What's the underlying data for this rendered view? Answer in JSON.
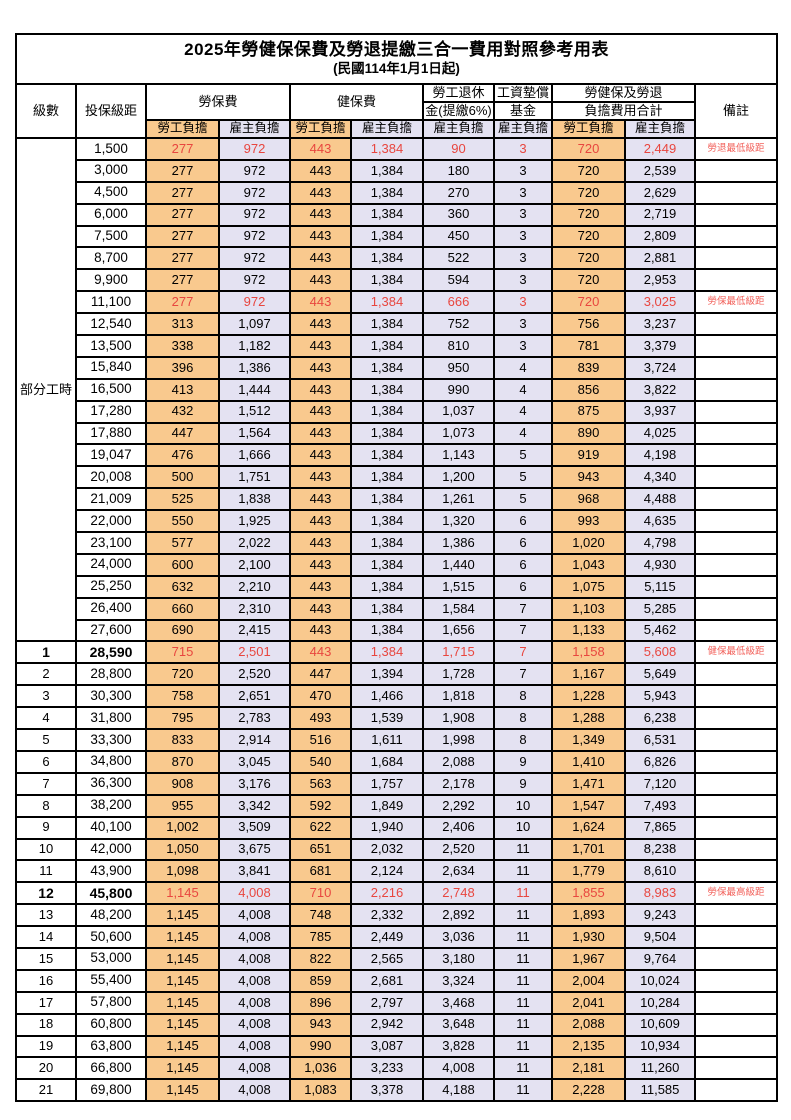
{
  "title": "2025年勞健保保費及勞退提繳三合一費用對照參考用表",
  "subtitle": "(民國114年1月1日起)",
  "header": {
    "level": "級數",
    "bracket": "投保級距",
    "labor_insurance": "勞保費",
    "health_insurance": "健保費",
    "pension_line1": "勞工退休",
    "pension_line2": "金(提繳6%)",
    "wage_fund_line1": "工資墊償",
    "wage_fund_line2": "基金",
    "total_line1": "勞健保及勞退",
    "total_line2": "負擔費用合計",
    "note": "備註",
    "employee": "勞工負擔",
    "employer": "雇主負擔"
  },
  "colors": {
    "employee_bg": "#f9c98e",
    "employer_bg": "#e4e2f2",
    "red_value": "#e8463f",
    "red_note": "#f2605a"
  },
  "part_time_label": "部分工時",
  "rows": [
    {
      "level": "",
      "bracket": "1,500",
      "values": [
        "277",
        "972",
        "443",
        "1,384",
        "90",
        "3",
        "720",
        "2,449"
      ],
      "note": "勞退最低級距",
      "red": true
    },
    {
      "level": "",
      "bracket": "3,000",
      "values": [
        "277",
        "972",
        "443",
        "1,384",
        "180",
        "3",
        "720",
        "2,539"
      ]
    },
    {
      "level": "",
      "bracket": "4,500",
      "values": [
        "277",
        "972",
        "443",
        "1,384",
        "270",
        "3",
        "720",
        "2,629"
      ]
    },
    {
      "level": "",
      "bracket": "6,000",
      "values": [
        "277",
        "972",
        "443",
        "1,384",
        "360",
        "3",
        "720",
        "2,719"
      ]
    },
    {
      "level": "",
      "bracket": "7,500",
      "values": [
        "277",
        "972",
        "443",
        "1,384",
        "450",
        "3",
        "720",
        "2,809"
      ]
    },
    {
      "level": "",
      "bracket": "8,700",
      "values": [
        "277",
        "972",
        "443",
        "1,384",
        "522",
        "3",
        "720",
        "2,881"
      ]
    },
    {
      "level": "",
      "bracket": "9,900",
      "values": [
        "277",
        "972",
        "443",
        "1,384",
        "594",
        "3",
        "720",
        "2,953"
      ]
    },
    {
      "level": "",
      "bracket": "11,100",
      "values": [
        "277",
        "972",
        "443",
        "1,384",
        "666",
        "3",
        "720",
        "3,025"
      ],
      "note": "勞保最低級距",
      "red": true
    },
    {
      "level": "",
      "bracket": "12,540",
      "values": [
        "313",
        "1,097",
        "443",
        "1,384",
        "752",
        "3",
        "756",
        "3,237"
      ]
    },
    {
      "level": "",
      "bracket": "13,500",
      "values": [
        "338",
        "1,182",
        "443",
        "1,384",
        "810",
        "3",
        "781",
        "3,379"
      ]
    },
    {
      "level": "",
      "bracket": "15,840",
      "values": [
        "396",
        "1,386",
        "443",
        "1,384",
        "950",
        "4",
        "839",
        "3,724"
      ]
    },
    {
      "level": "",
      "bracket": "16,500",
      "values": [
        "413",
        "1,444",
        "443",
        "1,384",
        "990",
        "4",
        "856",
        "3,822"
      ]
    },
    {
      "level": "",
      "bracket": "17,280",
      "values": [
        "432",
        "1,512",
        "443",
        "1,384",
        "1,037",
        "4",
        "875",
        "3,937"
      ]
    },
    {
      "level": "",
      "bracket": "17,880",
      "values": [
        "447",
        "1,564",
        "443",
        "1,384",
        "1,073",
        "4",
        "890",
        "4,025"
      ]
    },
    {
      "level": "",
      "bracket": "19,047",
      "values": [
        "476",
        "1,666",
        "443",
        "1,384",
        "1,143",
        "5",
        "919",
        "4,198"
      ]
    },
    {
      "level": "",
      "bracket": "20,008",
      "values": [
        "500",
        "1,751",
        "443",
        "1,384",
        "1,200",
        "5",
        "943",
        "4,340"
      ]
    },
    {
      "level": "",
      "bracket": "21,009",
      "values": [
        "525",
        "1,838",
        "443",
        "1,384",
        "1,261",
        "5",
        "968",
        "4,488"
      ]
    },
    {
      "level": "",
      "bracket": "22,000",
      "values": [
        "550",
        "1,925",
        "443",
        "1,384",
        "1,320",
        "6",
        "993",
        "4,635"
      ]
    },
    {
      "level": "",
      "bracket": "23,100",
      "values": [
        "577",
        "2,022",
        "443",
        "1,384",
        "1,386",
        "6",
        "1,020",
        "4,798"
      ]
    },
    {
      "level": "",
      "bracket": "24,000",
      "values": [
        "600",
        "2,100",
        "443",
        "1,384",
        "1,440",
        "6",
        "1,043",
        "4,930"
      ]
    },
    {
      "level": "",
      "bracket": "25,250",
      "values": [
        "632",
        "2,210",
        "443",
        "1,384",
        "1,515",
        "6",
        "1,075",
        "5,115"
      ]
    },
    {
      "level": "",
      "bracket": "26,400",
      "values": [
        "660",
        "2,310",
        "443",
        "1,384",
        "1,584",
        "7",
        "1,103",
        "5,285"
      ]
    },
    {
      "level": "",
      "bracket": "27,600",
      "values": [
        "690",
        "2,415",
        "443",
        "1,384",
        "1,656",
        "7",
        "1,133",
        "5,462"
      ]
    },
    {
      "level": "1",
      "bracket": "28,590",
      "values": [
        "715",
        "2,501",
        "443",
        "1,384",
        "1,715",
        "7",
        "1,158",
        "5,608"
      ],
      "note": "健保最低級距",
      "red": true,
      "bold": true
    },
    {
      "level": "2",
      "bracket": "28,800",
      "values": [
        "720",
        "2,520",
        "447",
        "1,394",
        "1,728",
        "7",
        "1,167",
        "5,649"
      ]
    },
    {
      "level": "3",
      "bracket": "30,300",
      "values": [
        "758",
        "2,651",
        "470",
        "1,466",
        "1,818",
        "8",
        "1,228",
        "5,943"
      ]
    },
    {
      "level": "4",
      "bracket": "31,800",
      "values": [
        "795",
        "2,783",
        "493",
        "1,539",
        "1,908",
        "8",
        "1,288",
        "6,238"
      ]
    },
    {
      "level": "5",
      "bracket": "33,300",
      "values": [
        "833",
        "2,914",
        "516",
        "1,611",
        "1,998",
        "8",
        "1,349",
        "6,531"
      ]
    },
    {
      "level": "6",
      "bracket": "34,800",
      "values": [
        "870",
        "3,045",
        "540",
        "1,684",
        "2,088",
        "9",
        "1,410",
        "6,826"
      ]
    },
    {
      "level": "7",
      "bracket": "36,300",
      "values": [
        "908",
        "3,176",
        "563",
        "1,757",
        "2,178",
        "9",
        "1,471",
        "7,120"
      ]
    },
    {
      "level": "8",
      "bracket": "38,200",
      "values": [
        "955",
        "3,342",
        "592",
        "1,849",
        "2,292",
        "10",
        "1,547",
        "7,493"
      ]
    },
    {
      "level": "9",
      "bracket": "40,100",
      "values": [
        "1,002",
        "3,509",
        "622",
        "1,940",
        "2,406",
        "10",
        "1,624",
        "7,865"
      ]
    },
    {
      "level": "10",
      "bracket": "42,000",
      "values": [
        "1,050",
        "3,675",
        "651",
        "2,032",
        "2,520",
        "11",
        "1,701",
        "8,238"
      ]
    },
    {
      "level": "11",
      "bracket": "43,900",
      "values": [
        "1,098",
        "3,841",
        "681",
        "2,124",
        "2,634",
        "11",
        "1,779",
        "8,610"
      ]
    },
    {
      "level": "12",
      "bracket": "45,800",
      "values": [
        "1,145",
        "4,008",
        "710",
        "2,216",
        "2,748",
        "11",
        "1,855",
        "8,983"
      ],
      "note": "勞保最高級距",
      "red": true,
      "bold": true
    },
    {
      "level": "13",
      "bracket": "48,200",
      "values": [
        "1,145",
        "4,008",
        "748",
        "2,332",
        "2,892",
        "11",
        "1,893",
        "9,243"
      ]
    },
    {
      "level": "14",
      "bracket": "50,600",
      "values": [
        "1,145",
        "4,008",
        "785",
        "2,449",
        "3,036",
        "11",
        "1,930",
        "9,504"
      ]
    },
    {
      "level": "15",
      "bracket": "53,000",
      "values": [
        "1,145",
        "4,008",
        "822",
        "2,565",
        "3,180",
        "11",
        "1,967",
        "9,764"
      ]
    },
    {
      "level": "16",
      "bracket": "55,400",
      "values": [
        "1,145",
        "4,008",
        "859",
        "2,681",
        "3,324",
        "11",
        "2,004",
        "10,024"
      ]
    },
    {
      "level": "17",
      "bracket": "57,800",
      "values": [
        "1,145",
        "4,008",
        "896",
        "2,797",
        "3,468",
        "11",
        "2,041",
        "10,284"
      ]
    },
    {
      "level": "18",
      "bracket": "60,800",
      "values": [
        "1,145",
        "4,008",
        "943",
        "2,942",
        "3,648",
        "11",
        "2,088",
        "10,609"
      ]
    },
    {
      "level": "19",
      "bracket": "63,800",
      "values": [
        "1,145",
        "4,008",
        "990",
        "3,087",
        "3,828",
        "11",
        "2,135",
        "10,934"
      ]
    },
    {
      "level": "20",
      "bracket": "66,800",
      "values": [
        "1,145",
        "4,008",
        "1,036",
        "3,233",
        "4,008",
        "11",
        "2,181",
        "11,260"
      ]
    },
    {
      "level": "21",
      "bracket": "69,800",
      "values": [
        "1,145",
        "4,008",
        "1,083",
        "3,378",
        "4,188",
        "11",
        "2,228",
        "11,585"
      ]
    }
  ]
}
